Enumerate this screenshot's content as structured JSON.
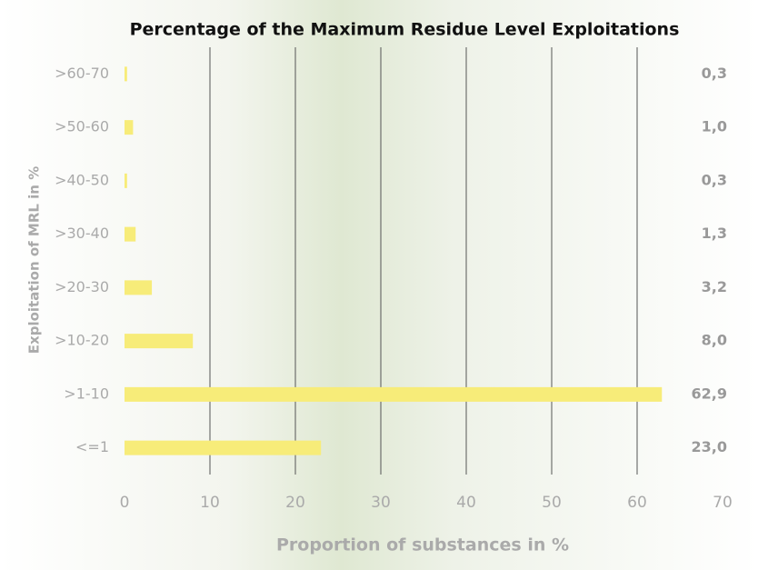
{
  "chart_data": {
    "type": "bar",
    "orientation": "horizontal",
    "title": "Percentage of the Maximum Residue Level Exploitations",
    "x_label": "Proportion of substances in %",
    "y_label": "Exploitation of MRL in %",
    "categories": [
      ">60-70",
      ">50-60",
      ">40-50",
      ">30-40",
      ">20-30",
      ">10-20",
      ">1-10",
      "<=1"
    ],
    "values": [
      0.3,
      1.0,
      0.3,
      1.3,
      3.2,
      8.0,
      62.9,
      23.0
    ],
    "value_labels": [
      "0,3",
      "1,0",
      "0,3",
      "1,3",
      "3,2",
      "8,0",
      "62,9",
      "23,0"
    ],
    "color": "#f7ec79",
    "xlim": [
      0,
      70
    ],
    "xticks": [
      0,
      10,
      20,
      30,
      40,
      50,
      60,
      70
    ],
    "grid": true
  }
}
